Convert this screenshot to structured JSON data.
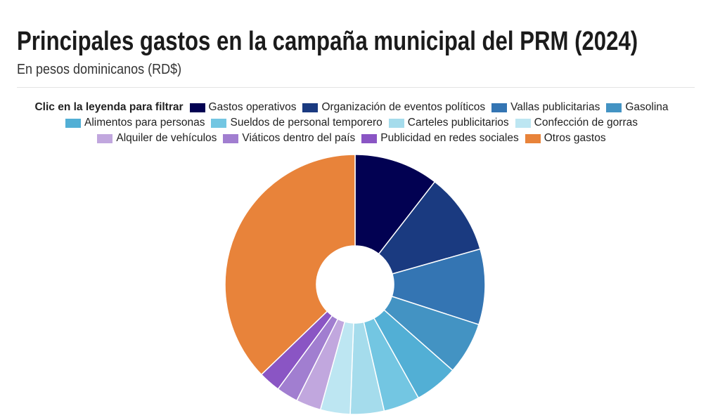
{
  "chart_data": {
    "type": "donut",
    "title": "Principales gastos en la campaña municipal del PRM (2024)",
    "subtitle": "En pesos dominicanos (RD$)",
    "legend_hint": "Clic en la leyenda para filtrar",
    "categories": [
      "Gastos operativos",
      "Organización de eventos políticos",
      "Vallas publicitarias",
      "Gasolina",
      "Alimentos para personas",
      "Sueldos de personal temporero",
      "Carteles publicitarios",
      "Confección de gorras",
      "Alquiler de vehículos",
      "Viáticos dentro del país",
      "Publicidad en redes sociales",
      "Otros gastos"
    ],
    "values": [
      10.5,
      10.1,
      9.4,
      6.5,
      5.4,
      4.5,
      4.2,
      3.7,
      3.1,
      2.7,
      2.7,
      37.2
    ],
    "colors": [
      "#020152",
      "#1a3a80",
      "#3475b3",
      "#4393c3",
      "#52afd5",
      "#73c6e2",
      "#a5dcec",
      "#bde6f2",
      "#c1a7de",
      "#a17ed0",
      "#8a55c4",
      "#e8833a"
    ],
    "legend": "top"
  }
}
